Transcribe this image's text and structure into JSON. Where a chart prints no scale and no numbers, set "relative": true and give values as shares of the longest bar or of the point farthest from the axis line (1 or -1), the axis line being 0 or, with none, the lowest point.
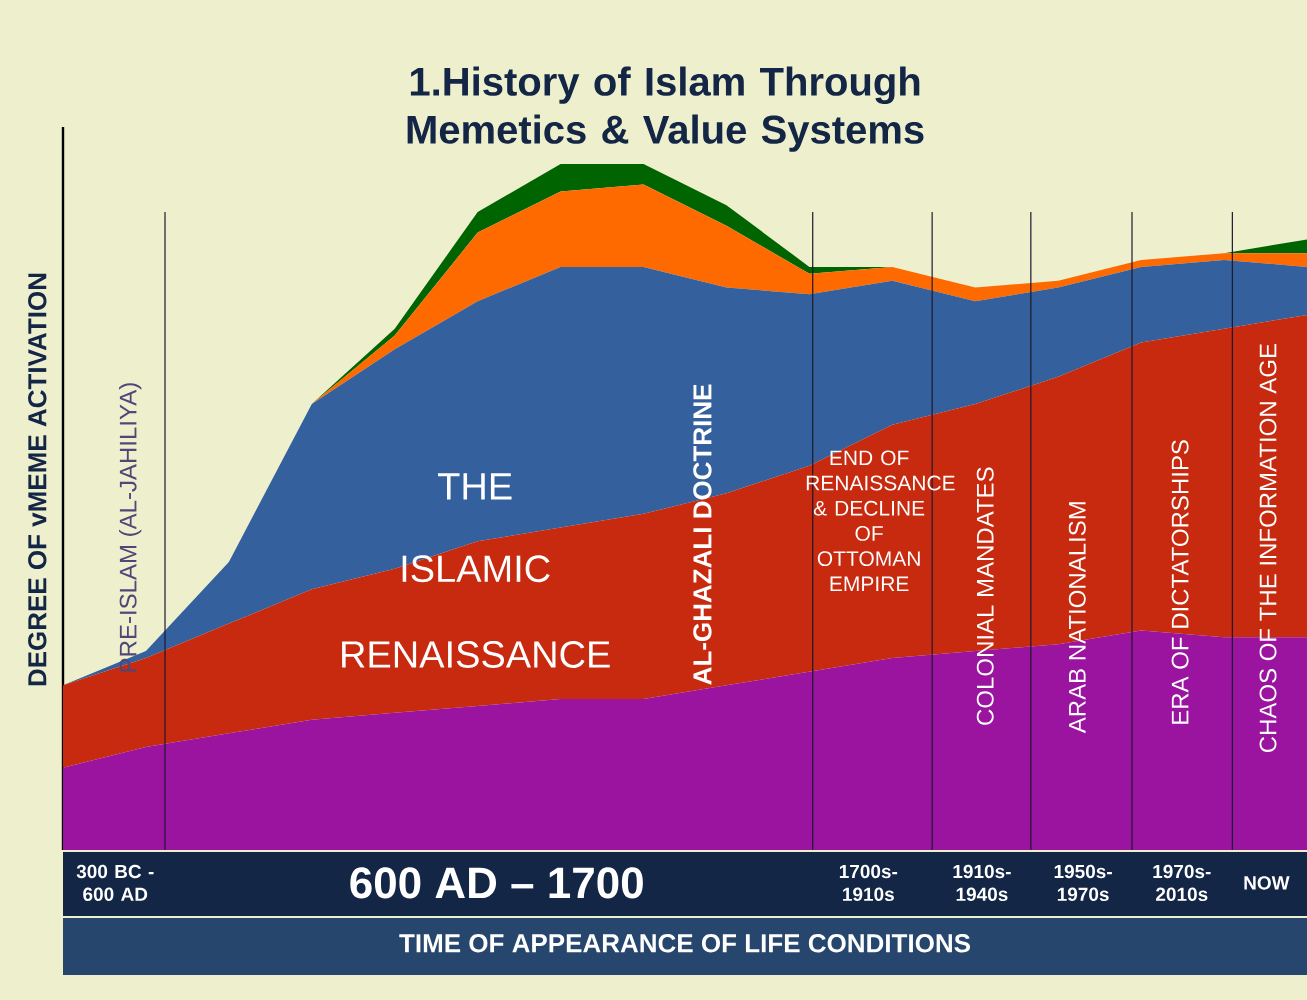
{
  "chart_data": {
    "type": "area",
    "title": "1.History of Islam Through Memetics & Value Systems",
    "xlabel": "TIME OF APPEARANCE OF LIFE CONDITIONS",
    "ylabel": "DEGREE OF vMEME ACTIVATION",
    "relative": true,
    "stacked": true,
    "categories": [
      null,
      null,
      null,
      null,
      null,
      null,
      null,
      null,
      null,
      null,
      null,
      null,
      null,
      null,
      null,
      null
    ],
    "series": [
      {
        "color": "#9a14a0",
        "values": [
          0.12,
          0.15,
          0.17,
          0.19,
          0.2,
          0.21,
          0.22,
          0.22,
          0.24,
          0.26,
          0.28,
          0.29,
          0.3,
          0.32,
          0.31,
          0.31
        ]
      },
      {
        "color": "#c82a10",
        "values": [
          0.12,
          0.13,
          0.16,
          0.19,
          0.21,
          0.24,
          0.25,
          0.27,
          0.28,
          0.3,
          0.34,
          0.36,
          0.39,
          0.42,
          0.45,
          0.47
        ]
      },
      {
        "color": "#35609e",
        "values": [
          0,
          0.01,
          0.09,
          0.27,
          0.32,
          0.35,
          0.38,
          0.36,
          0.3,
          0.25,
          0.21,
          0.15,
          0.13,
          0.11,
          0.1,
          0.07
        ]
      },
      {
        "color": "#ff6a00",
        "values": [
          0,
          0,
          0,
          0,
          0.02,
          0.1,
          0.11,
          0.12,
          0.09,
          0.03,
          0.02,
          0.02,
          0.01,
          0.01,
          0.01,
          0.02
        ]
      },
      {
        "color": "#006400",
        "values": [
          0,
          0,
          0,
          0,
          0.01,
          0.03,
          0.04,
          0.03,
          0.03,
          0.01,
          0,
          0,
          0,
          0,
          0,
          0.02
        ]
      }
    ],
    "annotations": [
      "PRE-ISLAM (AL-JAHILIYA)",
      "THE",
      "ISLAMIC",
      "RENAISSANCE",
      "END OF RENAISSANCE & DECLINE OF OTTOMAN EMPIRE",
      "COLONIAL MANDATES",
      "ARAB NATIONALISM",
      "ERA OF DICTATORSHIPS",
      "CHAOS OF THE INFORMATION AGE",
      "300 BC - 600 AD",
      "600 AD – 1700",
      "1700s-1910s",
      "1910s-1940s",
      "1950s-1970s",
      "1970s-2010s",
      "NOW",
      "AL-GHAZALI DOCTRINE"
    ]
  }
}
